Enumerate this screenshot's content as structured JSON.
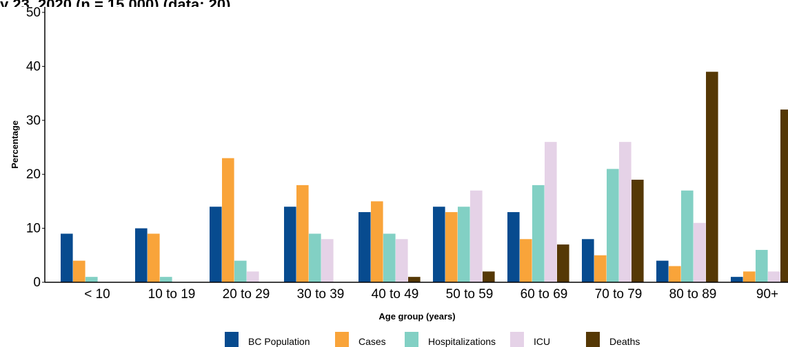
{
  "header": {
    "clipped_title": "y 23, 2020 (n = 15,000) (data: 20)"
  },
  "chart_data": {
    "type": "bar",
    "title": "",
    "xlabel": "Age group (years)",
    "ylabel": "Percentage",
    "ylim": [
      0,
      50
    ],
    "yticks": [
      0,
      10,
      20,
      30,
      40,
      50
    ],
    "grid": false,
    "legend_position": "bottom",
    "categories": [
      "< 10",
      "10 to 19",
      "20 to 29",
      "30 to 39",
      "40 to 49",
      "50 to 59",
      "60 to 69",
      "70 to 79",
      "80 to 89",
      "90+"
    ],
    "series": [
      {
        "name": "BC Population",
        "color": "#074b8f",
        "values": [
          9,
          10,
          14,
          14,
          13,
          14,
          13,
          8,
          4,
          1
        ]
      },
      {
        "name": "Cases",
        "color": "#f9a43a",
        "values": [
          4,
          9,
          23,
          18,
          15,
          13,
          8,
          5,
          3,
          2
        ]
      },
      {
        "name": "Hospitalizations",
        "color": "#82d0c4",
        "values": [
          1,
          1,
          4,
          9,
          9,
          14,
          18,
          21,
          17,
          6
        ]
      },
      {
        "name": "ICU",
        "color": "#e5d2e7",
        "values": [
          0,
          0,
          2,
          8,
          8,
          17,
          26,
          26,
          11,
          2
        ]
      },
      {
        "name": "Deaths",
        "color": "#553805",
        "values": [
          0,
          0,
          0,
          0,
          1,
          2,
          7,
          19,
          39,
          32
        ]
      }
    ]
  }
}
